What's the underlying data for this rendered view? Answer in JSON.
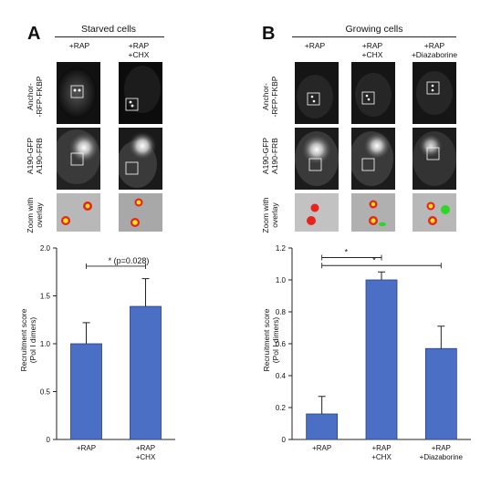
{
  "panelA": {
    "letter": "A",
    "group_title": "Starved cells",
    "columns": [
      "+RAP",
      "+RAP\n+CHX"
    ],
    "row_labels": [
      "Anchor-\n-RFP-FKBP",
      "A190-GFP\nA190-FRB",
      "Zoom with\noverlay"
    ],
    "significance": "* (p=0.028)"
  },
  "panelB": {
    "letter": "B",
    "group_title": "Growing cells",
    "columns": [
      "+RAP",
      "+RAP\n+CHX",
      "+RAP\n+Diazaborine"
    ],
    "row_labels": [
      "Anchor-\n-RFP-FKBP",
      "A190-GFP\nA190-FRB",
      "Zoom with\noverlay"
    ],
    "significance": [
      "*",
      "*"
    ]
  },
  "colors": {
    "bar": "#4a6fc4",
    "bar_edge": "#2a3f7a",
    "red_spot": "#e8231e",
    "yellow_spot": "#f3e11a",
    "green_spot": "#2fd62a"
  },
  "chart_data": [
    {
      "type": "bar",
      "categories": [
        "+RAP",
        "+RAP\n+CHX"
      ],
      "values": [
        1.0,
        1.39
      ],
      "errors": [
        0.22,
        0.29
      ],
      "ylabel": "Recruitment score\n(Pol I dimers)",
      "ylim": [
        0,
        2
      ],
      "yticks": [
        "0",
        "0.5",
        "1.0",
        "1.5",
        "2.0"
      ],
      "ytick_values": [
        0,
        0.5,
        1.0,
        1.5,
        2.0
      ]
    },
    {
      "type": "bar",
      "categories": [
        "+RAP",
        "+RAP\n+CHX",
        "+RAP\n+Diazaborine"
      ],
      "values": [
        0.16,
        1.0,
        0.57
      ],
      "errors": [
        0.11,
        0.05,
        0.14
      ],
      "ylabel": "Recruitment score\n(Pol I dimers)",
      "ylim": [
        0,
        1.2
      ],
      "yticks": [
        "0",
        "0.2",
        "0.4",
        "0.6",
        "0.8",
        "1.0",
        "1.2"
      ],
      "ytick_values": [
        0,
        0.2,
        0.4,
        0.6,
        0.8,
        1.0,
        1.2
      ]
    }
  ]
}
